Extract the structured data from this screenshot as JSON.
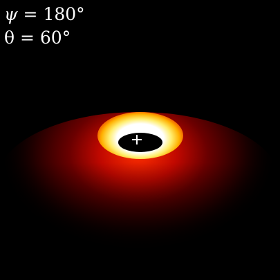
{
  "labels": {
    "psi": {
      "symbol": "ψ",
      "rest": " = 180°"
    },
    "theta": {
      "text": "θ = 60°"
    }
  },
  "colors": {
    "background": "#000000",
    "glow_white": "#ffffff",
    "glow_yellow": "#ffe040",
    "glow_orange": "#ff6000",
    "glow_red": "#a00000",
    "glow_dark_red": "#300000",
    "shadow": "#000000",
    "marker": "#ffffff"
  },
  "icons": {
    "center_marker": "plus-icon"
  }
}
